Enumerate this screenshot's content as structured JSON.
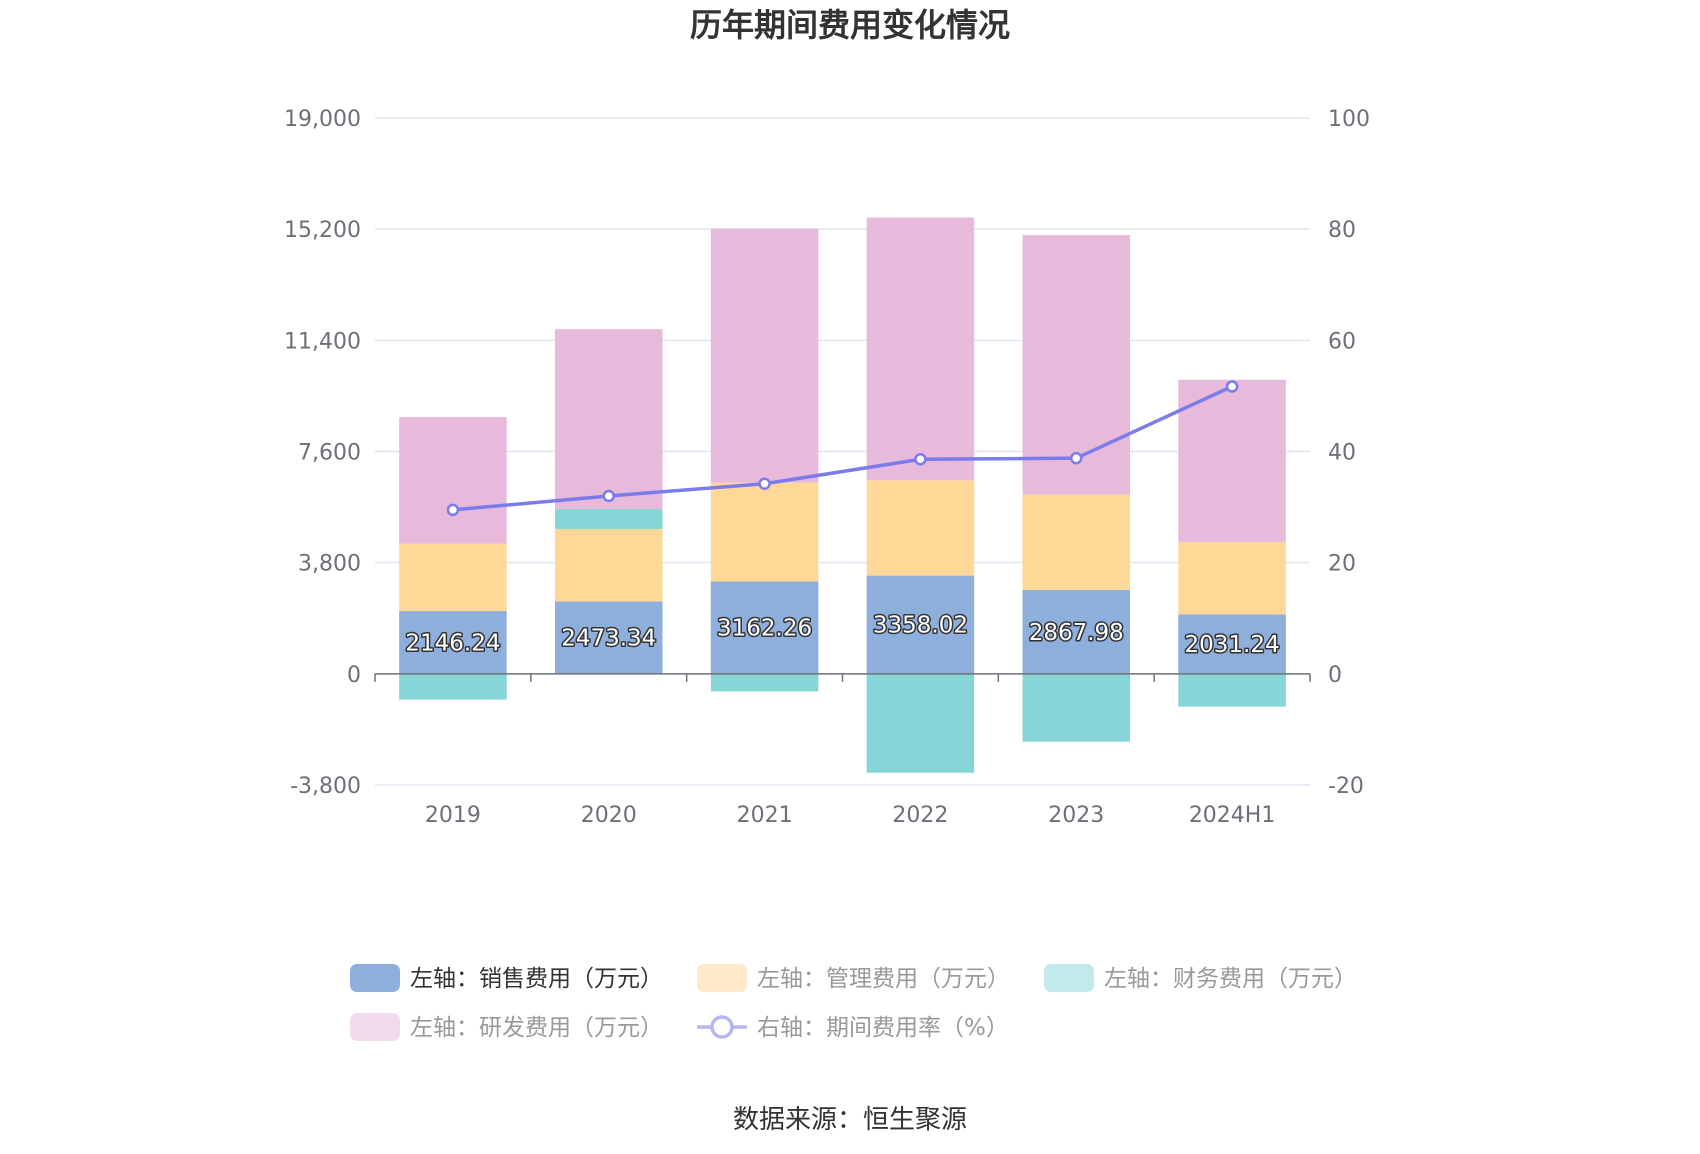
{
  "chart_data": {
    "type": "bar",
    "title": "历年期间费用变化情况",
    "categories": [
      "2019",
      "2020",
      "2021",
      "2022",
      "2023",
      "2024H1"
    ],
    "left_axis": {
      "min": -3800,
      "max": 19000,
      "ticks": [
        -3800,
        0,
        3800,
        7600,
        11400,
        15200,
        19000
      ],
      "tick_labels": [
        "-3,800",
        "0",
        "3,800",
        "7,600",
        "11,400",
        "15,200",
        "19,000"
      ]
    },
    "right_axis": {
      "min": -20,
      "max": 100,
      "ticks": [
        -20,
        0,
        20,
        40,
        60,
        80,
        100
      ],
      "tick_labels": [
        "-20",
        "0",
        "20",
        "40",
        "60",
        "80",
        "100"
      ]
    },
    "series": [
      {
        "name": "左轴：销售费用（万元）",
        "type": "bar",
        "axis": "left",
        "color": "#8eaedc",
        "values": [
          2146.24,
          2473.34,
          3162.26,
          3358.02,
          2867.98,
          2031.24
        ],
        "show_labels": true
      },
      {
        "name": "左轴：管理费用（万元）",
        "type": "bar",
        "axis": "left",
        "color": "#ffd898",
        "values": [
          2300,
          2480,
          3370,
          3260,
          3260,
          2480
        ]
      },
      {
        "name": "左轴：财务费用（万元）",
        "type": "bar",
        "axis": "left",
        "color": "#86d6d8",
        "values": [
          -880,
          680,
          -600,
          -3380,
          -2320,
          -1120
        ]
      },
      {
        "name": "左轴：研发费用（万元）",
        "type": "bar",
        "axis": "left",
        "color": "#e7b9db",
        "values": [
          4330,
          6150,
          8690,
          8980,
          8870,
          5540
        ]
      },
      {
        "name": "右轴：期间费用率（%）",
        "type": "line",
        "axis": "right",
        "color": "#7b7bec",
        "values": [
          29.5,
          32.0,
          34.2,
          38.6,
          38.8,
          51.7
        ]
      }
    ],
    "legend": [
      {
        "label": "左轴：销售费用（万元）",
        "color": "#8eaedc",
        "kind": "bar",
        "active": true
      },
      {
        "label": "左轴：管理费用（万元）",
        "color": "#ffe9c6",
        "kind": "bar",
        "active": false
      },
      {
        "label": "左轴：财务费用（万元）",
        "color": "#c0eaeb",
        "kind": "bar",
        "active": false
      },
      {
        "label": "左轴：研发费用（万元）",
        "color": "#f2dcec",
        "kind": "bar",
        "active": false
      },
      {
        "label": "右轴：期间费用率（%）",
        "color": "#b6b6f4",
        "kind": "line",
        "active": false
      }
    ],
    "source": "数据来源：恒生聚源"
  }
}
